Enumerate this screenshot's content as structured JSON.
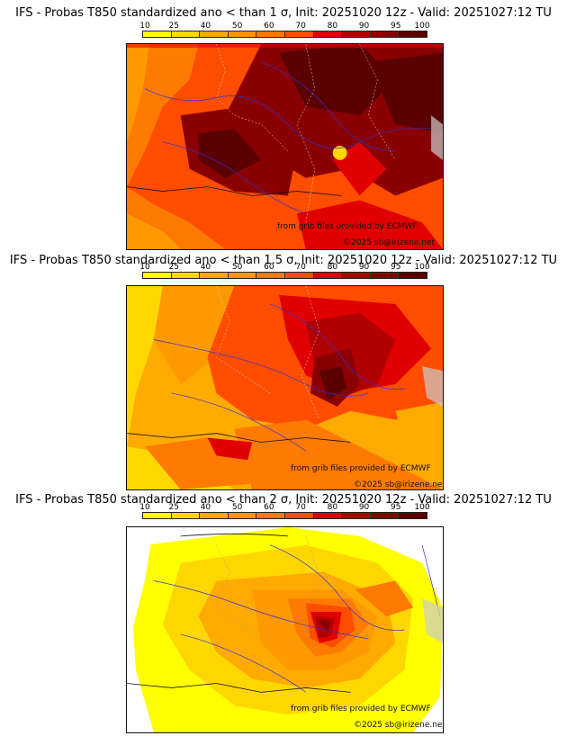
{
  "colorbar": {
    "labels": [
      "10",
      "25",
      "40",
      "50",
      "60",
      "70",
      "80",
      "90",
      "95",
      "100"
    ],
    "colors": [
      "#ffff00",
      "#ffd700",
      "#ffaa00",
      "#ff9900",
      "#ff7a00",
      "#ff4d00",
      "#e00000",
      "#b00000",
      "#8a0000",
      "#5a0000"
    ]
  },
  "credits": {
    "source": "from grib files provided by ECMWF",
    "copyright": "©2025 sb@irizene.net"
  },
  "panels": [
    {
      "title": "IFS - Probas T850  standardized ano < than 1 σ, Init: 20251020 12z - Valid: 20251027:12 TU",
      "sigma": "1",
      "probability_range_percent": [
        60,
        100
      ]
    },
    {
      "title": "IFS - Probas T850  standardized ano < than 1.5 σ, Init: 20251020 12z - Valid: 20251027:12 TU",
      "sigma": "1.5",
      "probability_range_percent": [
        25,
        100
      ]
    },
    {
      "title": "IFS - Probas T850  standardized ano < than 2 σ, Init: 20251020 12z - Valid: 20251027:12 TU",
      "sigma": "2",
      "probability_range_percent": [
        0,
        100
      ]
    }
  ]
}
